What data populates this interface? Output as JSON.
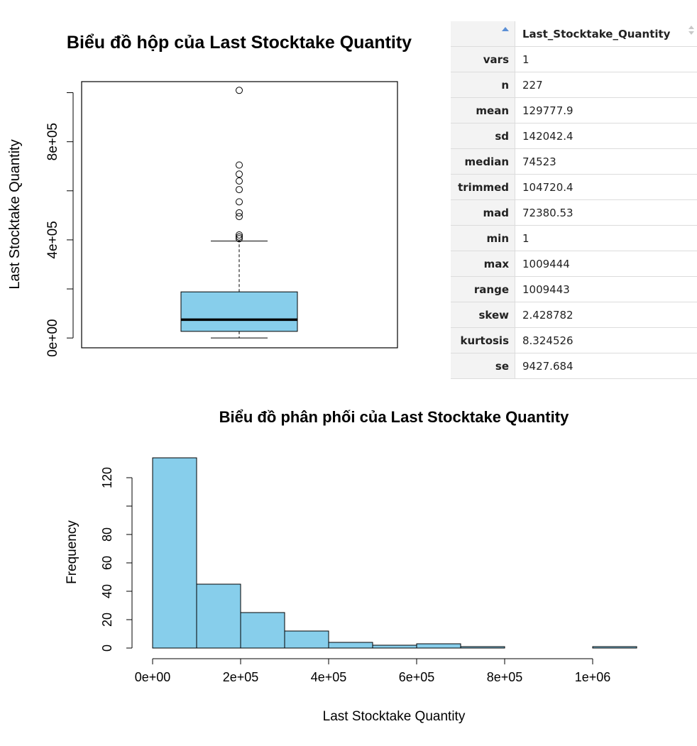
{
  "chart_data": [
    {
      "type": "box",
      "title": "Biểu đồ hộp của Last Stocktake Quantity",
      "ylabel": "Last Stocktake Quantity",
      "ylim": [
        -40000,
        1045000
      ],
      "yticks": [
        0,
        200000,
        400000,
        600000,
        800000,
        1000000
      ],
      "ytick_labels": [
        "0e+00",
        "",
        "4e+05",
        "",
        "8e+05",
        ""
      ],
      "box": {
        "whisker_low": 1,
        "q1": 27000,
        "median": 74523,
        "q3": 188000,
        "whisker_high": 395000
      },
      "outliers": [
        405000,
        412000,
        420000,
        495000,
        510000,
        555000,
        605000,
        640000,
        668000,
        705000,
        1009444
      ],
      "color": "#87CEEB"
    },
    {
      "type": "bar",
      "title": "Biểu đồ phân phối của Last Stocktake Quantity",
      "xlabel": "Last Stocktake Quantity",
      "ylabel": "Frequency",
      "bin_edges": [
        0,
        100000,
        200000,
        300000,
        400000,
        500000,
        600000,
        700000,
        800000,
        900000,
        1000000,
        1100000
      ],
      "values": [
        134,
        45,
        25,
        12,
        4,
        2,
        3,
        1,
        0,
        0,
        1
      ],
      "xticks": [
        0,
        200000,
        400000,
        600000,
        800000,
        1000000
      ],
      "xtick_labels": [
        "0e+00",
        "2e+05",
        "4e+05",
        "6e+05",
        "8e+05",
        "1e+06"
      ],
      "yticks": [
        0,
        20,
        40,
        60,
        80,
        100,
        120
      ],
      "ytick_labels": [
        "0",
        "20",
        "40",
        "60",
        "80",
        "",
        "120"
      ],
      "ylim": [
        0,
        134
      ],
      "color": "#87CEEB"
    }
  ],
  "stats_table": {
    "column_header": "Last_Stocktake_Quantity",
    "rows": [
      {
        "name": "vars",
        "value": "1"
      },
      {
        "name": "n",
        "value": "227"
      },
      {
        "name": "mean",
        "value": "129777.9"
      },
      {
        "name": "sd",
        "value": "142042.4"
      },
      {
        "name": "median",
        "value": "74523"
      },
      {
        "name": "trimmed",
        "value": "104720.4"
      },
      {
        "name": "mad",
        "value": "72380.53"
      },
      {
        "name": "min",
        "value": "1"
      },
      {
        "name": "max",
        "value": "1009444"
      },
      {
        "name": "range",
        "value": "1009443"
      },
      {
        "name": "skew",
        "value": "2.428782"
      },
      {
        "name": "kurtosis",
        "value": "8.324526"
      },
      {
        "name": "se",
        "value": "9427.684"
      }
    ]
  }
}
